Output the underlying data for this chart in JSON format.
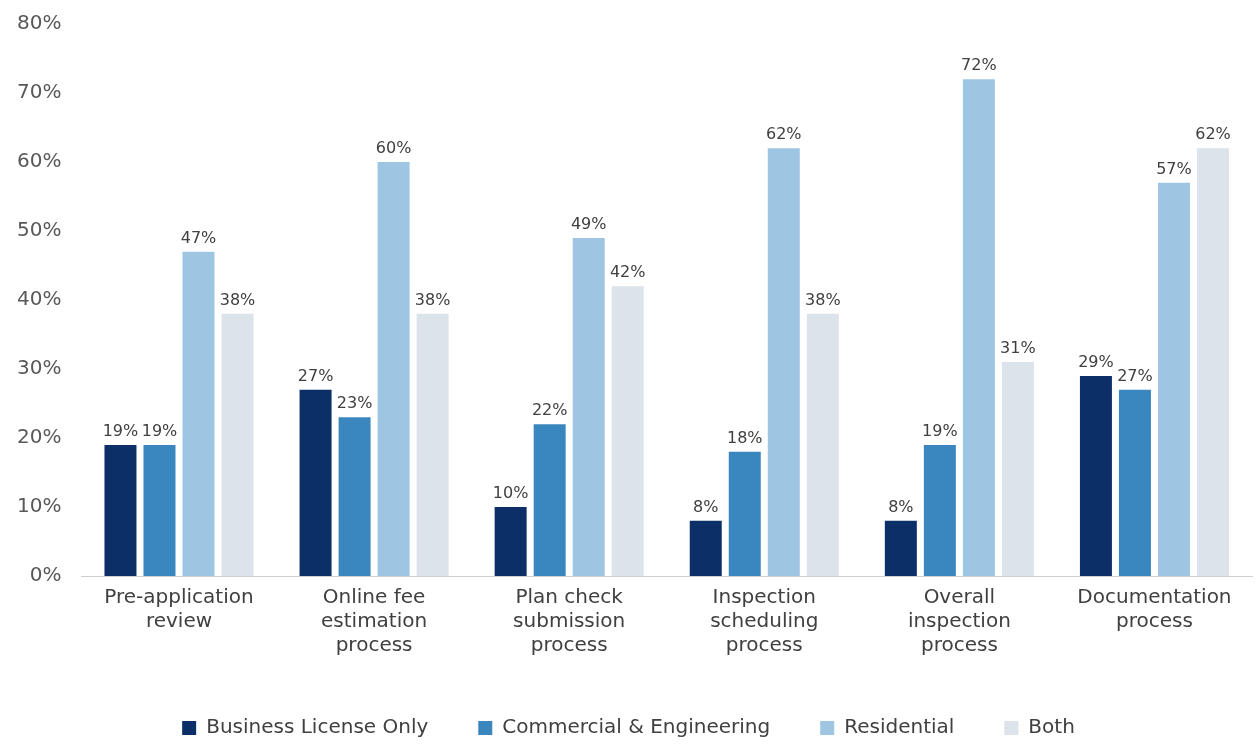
{
  "chart_data": {
    "type": "bar",
    "categories": [
      "Pre-application review",
      "Online fee estimation process",
      "Plan check submission process",
      "Inspection scheduling process",
      "Overall inspection process",
      "Documentation process"
    ],
    "series": [
      {
        "name": "Business License Only",
        "color": "#0b2f66",
        "values": [
          19,
          27,
          10,
          8,
          8,
          29
        ],
        "value_labels": [
          "19%",
          "27%",
          "10%",
          "8%",
          "8%",
          "29%"
        ]
      },
      {
        "name": "Commercial & Engineering",
        "color": "#3a87c0",
        "values": [
          19,
          23,
          22,
          18,
          19,
          27
        ],
        "value_labels": [
          "19%",
          "23%",
          "22%",
          "18%",
          "19%",
          "27%"
        ]
      },
      {
        "name": "Residential",
        "color": "#9ec5e2",
        "values": [
          47,
          60,
          49,
          62,
          72,
          57
        ],
        "value_labels": [
          "47%",
          "60%",
          "49%",
          "62%",
          "72%",
          "57%"
        ]
      },
      {
        "name": "Both",
        "color": "#dce3ea",
        "values": [
          38,
          38,
          42,
          38,
          31,
          62
        ],
        "value_labels": [
          "38%",
          "38%",
          "42%",
          "38%",
          "31%",
          "62%"
        ]
      }
    ],
    "ylim": [
      0,
      80
    ],
    "yticks": [
      {
        "value": 0,
        "label": "0%"
      },
      {
        "value": 10,
        "label": "10%"
      },
      {
        "value": 20,
        "label": "20%"
      },
      {
        "value": 30,
        "label": "30%"
      },
      {
        "value": 40,
        "label": "40%"
      },
      {
        "value": 50,
        "label": "50%"
      },
      {
        "value": 60,
        "label": "60%"
      },
      {
        "value": 70,
        "label": "70%"
      },
      {
        "value": 80,
        "label": "80%"
      }
    ],
    "grid": false,
    "legend": "bottom"
  }
}
